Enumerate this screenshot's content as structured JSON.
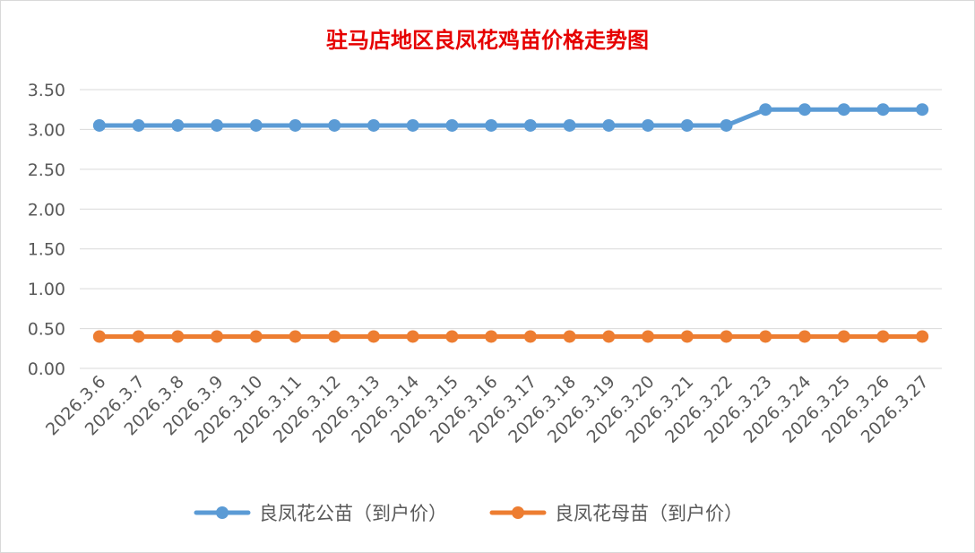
{
  "chart_data": {
    "type": "line",
    "title": "驻马店地区良凤花鸡苗价格走势图",
    "categories": [
      "2026.3.6",
      "2026.3.7",
      "2026.3.8",
      "2026.3.9",
      "2026.3.10",
      "2026.3.11",
      "2026.3.12",
      "2026.3.13",
      "2026.3.14",
      "2026.3.15",
      "2026.3.16",
      "2026.3.17",
      "2026.3.18",
      "2026.3.19",
      "2026.3.20",
      "2026.3.21",
      "2026.3.22",
      "2026.3.23",
      "2026.3.24",
      "2026.3.25",
      "2026.3.26",
      "2026.3.27"
    ],
    "series": [
      {
        "name": "良凤花公苗（到户价）",
        "color": "#5b9bd5",
        "values": [
          3.05,
          3.05,
          3.05,
          3.05,
          3.05,
          3.05,
          3.05,
          3.05,
          3.05,
          3.05,
          3.05,
          3.05,
          3.05,
          3.05,
          3.05,
          3.05,
          3.05,
          3.25,
          3.25,
          3.25,
          3.25,
          3.25
        ]
      },
      {
        "name": "良凤花母苗（到户价）",
        "color": "#ed7d31",
        "values": [
          0.4,
          0.4,
          0.4,
          0.4,
          0.4,
          0.4,
          0.4,
          0.4,
          0.4,
          0.4,
          0.4,
          0.4,
          0.4,
          0.4,
          0.4,
          0.4,
          0.4,
          0.4,
          0.4,
          0.4,
          0.4,
          0.4
        ]
      }
    ],
    "ylim": [
      0,
      3.5
    ],
    "yticks": [
      "0.00",
      "0.50",
      "1.00",
      "1.50",
      "2.00",
      "2.50",
      "3.00",
      "3.50"
    ],
    "grid": true,
    "legend_position": "bottom"
  }
}
